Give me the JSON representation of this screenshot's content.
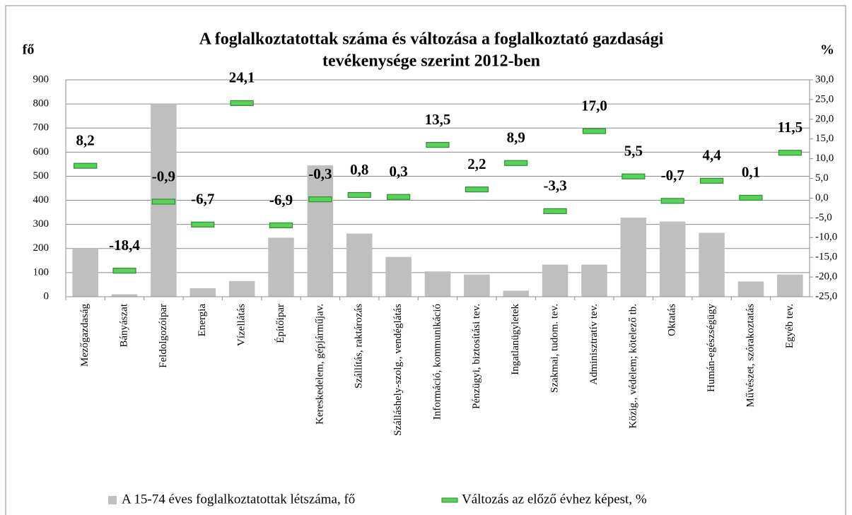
{
  "chart_data": {
    "type": "bar",
    "title": [
      "A foglalkoztatottak száma és változása a foglalkoztató gazdasági",
      "tevékenysége szerint 2012-ben"
    ],
    "y_label": "fő",
    "y2_label": "%",
    "categories": [
      "Mezőgazdaság",
      "Bányászat",
      "Feldolgozóipar",
      "Energia",
      "Vízellátás",
      "Építőipar",
      "Kereskedelem, gépjárműjav.",
      "Szállítás, raktározás",
      "Szálláshely-szolg., vendéglátás",
      "Információ, kommunikáció",
      "Pénzügyi, biztosítási tev.",
      "Ingatlanügyletek",
      "Szakmai, tudom. tev.",
      "Adminisztratív tev.",
      "Közig., védelem; kötelező tb.",
      "Oktatás",
      "Humán-egészségügy",
      "Művészet, szórakoztatás",
      "Egyéb tev."
    ],
    "series": [
      {
        "name": "A 15-74 éves foglalkoztatottak létszáma, fő",
        "type": "bar",
        "color": "#bfbfbf",
        "values": [
          200,
          10,
          800,
          35,
          65,
          245,
          545,
          262,
          165,
          105,
          92,
          25,
          133,
          133,
          328,
          312,
          265,
          63,
          92
        ]
      },
      {
        "name": "Változás az előző évhez képest, %",
        "type": "marker",
        "axis": "y2",
        "color": "#5ad15a",
        "values": [
          8.2,
          -18.4,
          -0.9,
          -6.7,
          24.1,
          -6.9,
          -0.3,
          0.8,
          0.3,
          13.5,
          2.2,
          8.9,
          -3.3,
          17.0,
          5.5,
          -0.7,
          4.4,
          0.1,
          11.5
        ],
        "value_labels": [
          "8,2",
          "-18,4",
          "-0,9",
          "-6,7",
          "24,1",
          "-6,9",
          "-0,3",
          "0,8",
          "0,3",
          "13,5",
          "2,2",
          "8,9",
          "-3,3",
          "17,0",
          "5,5",
          "-0,7",
          "4,4",
          "0,1",
          "11,5"
        ]
      }
    ],
    "ylim": [
      0,
      900
    ],
    "yticks": [
      0,
      100,
      200,
      300,
      400,
      500,
      600,
      700,
      800,
      900
    ],
    "y2lim": [
      -25,
      30
    ],
    "y2ticks": [
      {
        "value": -25,
        "label": "-25,0"
      },
      {
        "value": -20,
        "label": "-20,0"
      },
      {
        "value": -15,
        "label": "-15,0"
      },
      {
        "value": -10,
        "label": "-10,0"
      },
      {
        "value": -5,
        "label": "-5,0"
      },
      {
        "value": 0,
        "label": "0,0"
      },
      {
        "value": 5,
        "label": "5,0"
      },
      {
        "value": 10,
        "label": "10,0"
      },
      {
        "value": 15,
        "label": "15,0"
      },
      {
        "value": 20,
        "label": "20,0"
      },
      {
        "value": 25,
        "label": "25,0"
      },
      {
        "value": 30,
        "label": "30,0"
      }
    ],
    "grid": true,
    "legend": "bottom"
  }
}
